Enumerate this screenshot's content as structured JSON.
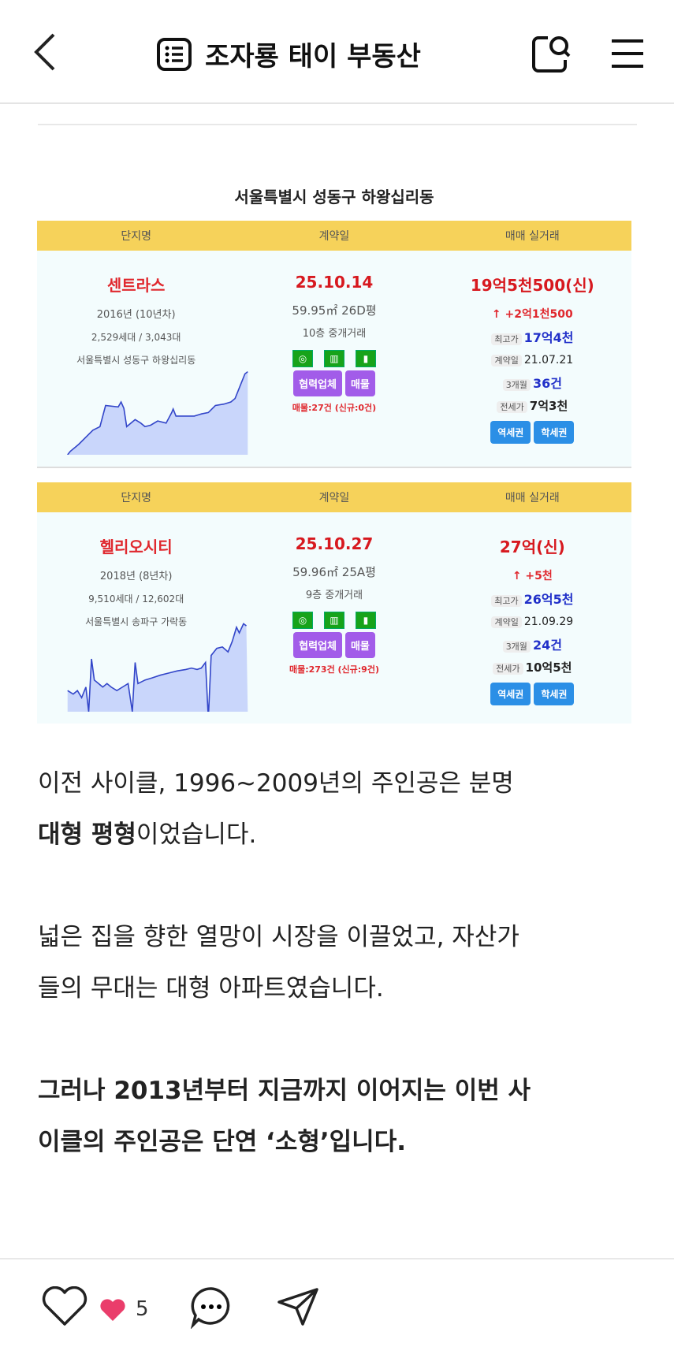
{
  "header": {
    "title": "조자룡 태이 부동산",
    "icons": [
      "back-icon",
      "board-list-icon",
      "search-icon",
      "menu-icon"
    ]
  },
  "embed": {
    "title": "서울특별시 성동구 하왕십리동",
    "columns": [
      "단지명",
      "계약일",
      "매매 실거래"
    ],
    "rows": [
      {
        "name": "센트라스",
        "year": "2016년 (10년차)",
        "units": "2,529세대 / 3,043대",
        "address": "서울특별시 성동구 하왕십리동",
        "date": "25.10.14",
        "area": "59.95㎡ 26D평",
        "floor": "10층 중개거래",
        "partner": "협력업체",
        "listing_btn": "매물",
        "listings": "매물:27건 (신규:0건)",
        "price": "19억5천500(신)",
        "change": "↑ +2억1천500",
        "max_label": "최고가",
        "max": "17억4천",
        "contract_label": "계약일",
        "contract": "21.07.21",
        "m3_label": "3개월",
        "m3": "36건",
        "jeonse_label": "전세가",
        "jeonse": "7억3천",
        "station": "역세권",
        "school": "학세권"
      },
      {
        "name": "헬리오시티",
        "year": "2018년 (8년차)",
        "units": "9,510세대 / 12,602대",
        "address": "서울특별시 송파구 가락동",
        "date": "25.10.27",
        "area": "59.96㎡ 25A평",
        "floor": "9층 중개거래",
        "partner": "협력업체",
        "listing_btn": "매물",
        "listings": "매물:273건 (신규:9건)",
        "price": "27억(신)",
        "change": "↑ +5천",
        "max_label": "최고가",
        "max": "26억5천",
        "contract_label": "계약일",
        "contract": "21.09.29",
        "m3_label": "3개월",
        "m3": "24건",
        "jeonse_label": "전세가",
        "jeonse": "10억5천",
        "station": "역세권",
        "school": "학세권"
      }
    ]
  },
  "paragraphs": [
    {
      "a": "이전 사이클, 1996~2009년의 주인공은 분명",
      "b": "대형 평형",
      "c": "이었습니다."
    },
    {
      "a": "넓은 집을 향한 열망이 시장을 이끌었고, 자산가",
      "b2": "들의 무대는 대형 아파트였습니다."
    },
    {
      "a": "그러나 2013년부터 지금까지 이어지는 이번 사",
      "b2": "이클의 주인공은 단연 ‘소형’입니다."
    }
  ],
  "footer": {
    "like_count": "5",
    "icons": [
      "heart-outline-icon",
      "heart-filled-icon",
      "comment-icon",
      "share-icon"
    ]
  },
  "colors": {
    "header_yellow": "#f6d25a",
    "price_red": "#d7191f",
    "accent_purple": "#a25ce9",
    "button_blue": "#2b8fe6"
  }
}
